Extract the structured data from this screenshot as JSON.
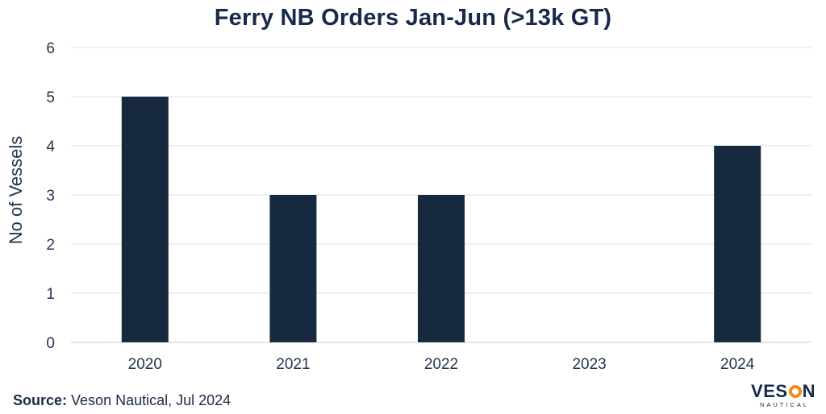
{
  "chart_data": {
    "type": "bar",
    "title": "Ferry NB Orders Jan-Jun (>13k GT)",
    "xlabel": "",
    "ylabel": "No of Vessels",
    "categories": [
      "2020",
      "2021",
      "2022",
      "2023",
      "2024"
    ],
    "values": [
      5,
      3,
      3,
      0,
      4
    ],
    "ylim": [
      0,
      6
    ],
    "yticks": [
      "0",
      "1",
      "2",
      "3",
      "4",
      "5",
      "6"
    ],
    "grid": true,
    "legend": "none",
    "bar_color": "#16293f"
  },
  "footer": {
    "source_label": "Source:",
    "source_text": " Veson Nautical, Jul 2024"
  },
  "logo": {
    "pre": "VES",
    "post": "N",
    "sub": "NAUTICAL",
    "accent": "#f08a1d"
  }
}
